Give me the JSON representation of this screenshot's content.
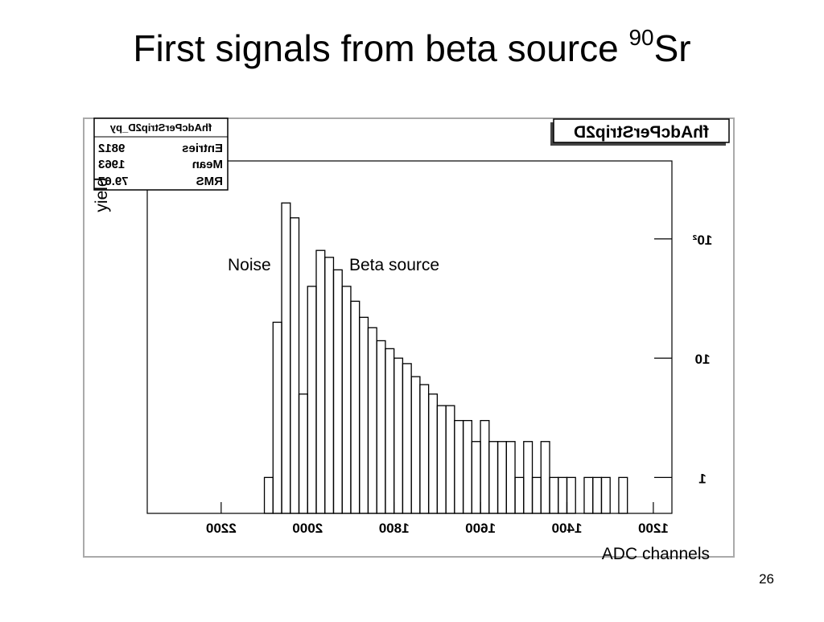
{
  "slide": {
    "title": {
      "text": "First signals from beta source ",
      "superscript": "90",
      "suffix": "Sr"
    },
    "page_number": "26"
  },
  "chart_data": {
    "type": "histogram",
    "title": "fhAdcPerStrip2D",
    "stats": {
      "name": "fhAdcPerStrip2D_py",
      "rows": [
        [
          "Entries",
          "9812"
        ],
        [
          "Mean",
          "1963"
        ],
        [
          "RMS",
          "79.67"
        ]
      ]
    },
    "x_label": "ADC channels",
    "y_label": "yield",
    "annotations": [
      "Noise",
      "Beta source"
    ],
    "bins": [
      1260,
      1280,
      1300,
      1320,
      1340,
      1360,
      1380,
      1400,
      1420,
      1440,
      1460,
      1480,
      1500,
      1520,
      1540,
      1560,
      1580,
      1600,
      1620,
      1640,
      1660,
      1680,
      1700,
      1720,
      1740,
      1760,
      1780,
      1800,
      1820,
      1840,
      1860,
      1880,
      1900,
      1920,
      1940,
      1960,
      1980,
      2000,
      2020,
      2040,
      2060,
      2080,
      2100
    ],
    "values": [
      1,
      0,
      1,
      1,
      1,
      0,
      1,
      1,
      1,
      2,
      1,
      2,
      1,
      2,
      2,
      2,
      3,
      2,
      3,
      3,
      4,
      4,
      5,
      6,
      7,
      9,
      10,
      12,
      14,
      18,
      22,
      30,
      40,
      55,
      70,
      80,
      40,
      5,
      150,
      200,
      20,
      1
    ],
    "color": "#000000",
    "xlim": [
      2371,
      1157
    ],
    "xticks": [
      2200,
      2000,
      1800,
      1600,
      1400,
      1200
    ],
    "ylim": [
      0.5,
      450
    ],
    "ylog": true,
    "yticks": [
      1,
      10,
      {
        "value": 100,
        "label": "10²"
      }
    ]
  }
}
